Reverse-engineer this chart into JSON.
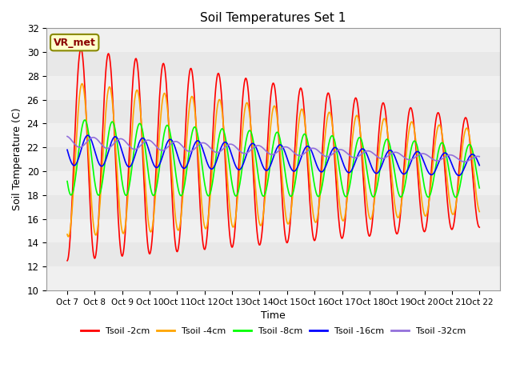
{
  "title": "Soil Temperatures Set 1",
  "xlabel": "Time",
  "ylabel": "Soil Temperature (C)",
  "ylim": [
    10,
    32
  ],
  "yticks": [
    10,
    12,
    14,
    16,
    18,
    20,
    22,
    24,
    26,
    28,
    30,
    32
  ],
  "xtick_labels": [
    "Oct 7",
    "Oct 8",
    "Oct 9",
    "Oct 10",
    "Oct 11",
    "Oct 12",
    "Oct 13",
    "Oct 14",
    "Oct 15",
    "Oct 16",
    "Oct 17",
    "Oct 18",
    "Oct 19",
    "Oct 20",
    "Oct 21",
    "Oct 22"
  ],
  "annotation_text": "VR_met",
  "series_colors": [
    "red",
    "orange",
    "lime",
    "blue",
    "mediumpurple"
  ],
  "series_labels": [
    "Tsoil -2cm",
    "Tsoil -4cm",
    "Tsoil -8cm",
    "Tsoil -16cm",
    "Tsoil -32cm"
  ],
  "plot_bg_color": "#e8e8e8",
  "band_color": "#f0f0f0",
  "n_days": 15,
  "n_points_per_day": 48
}
